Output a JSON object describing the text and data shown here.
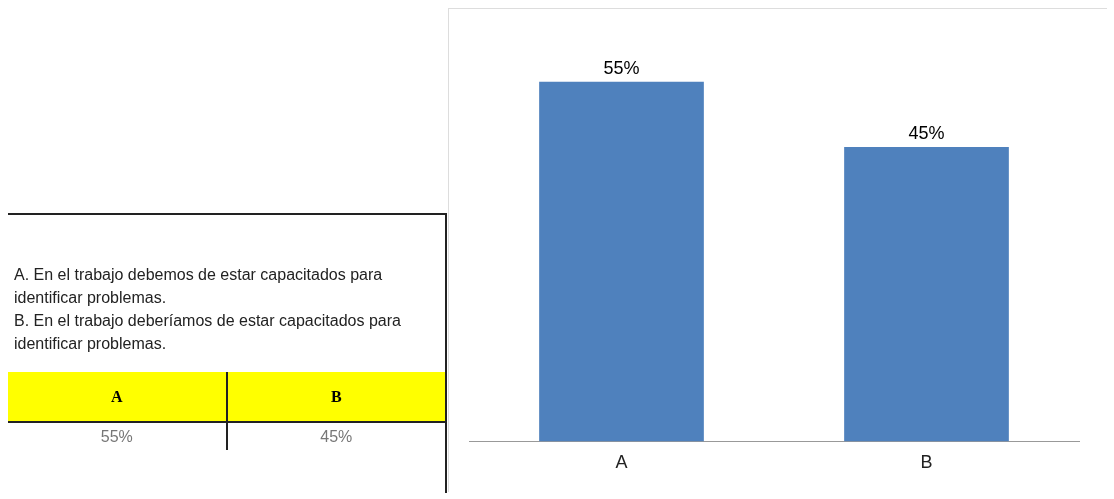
{
  "chart_data": {
    "type": "bar",
    "categories": [
      "A",
      "B"
    ],
    "values": [
      55,
      45
    ],
    "value_labels": [
      "55%",
      "45%"
    ],
    "color": "#4f81bd",
    "tick_labels": "x",
    "grid": false,
    "legend": false,
    "annotations": [
      "A.   En el trabajo debemos de estar capacitados para identificar problemas.",
      "B.     En el trabajo deberíamos de estar capacitados para identificar problemas."
    ]
  }
}
